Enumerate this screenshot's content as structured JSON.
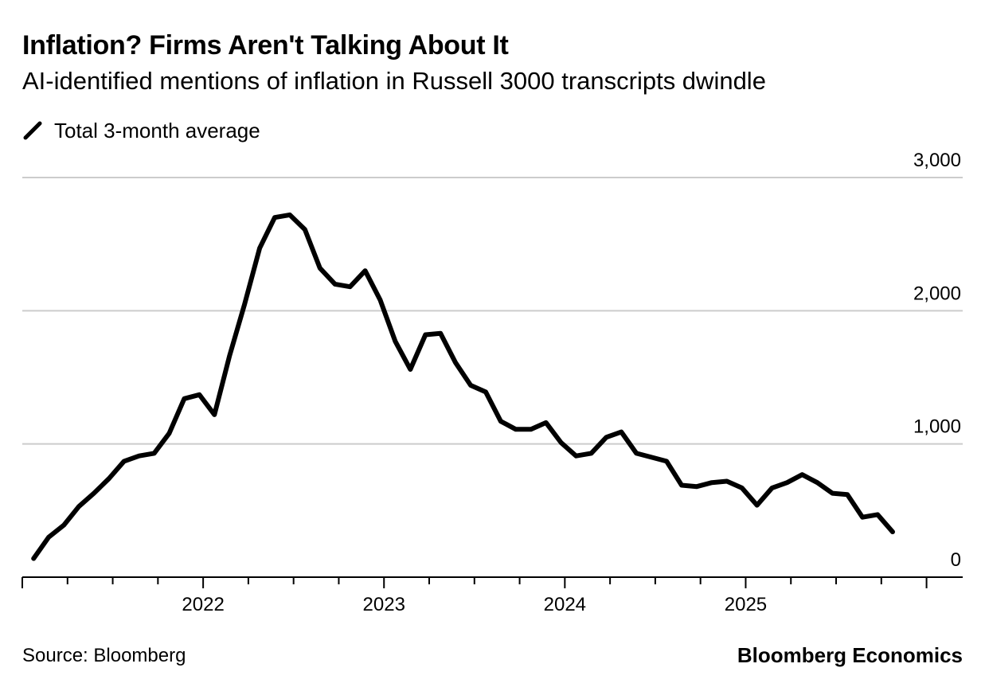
{
  "header": {
    "title": "Inflation? Firms Aren't Talking About It",
    "subtitle": "AI-identified mentions of inflation in Russell 3000 transcripts dwindle"
  },
  "legend": {
    "label": "Total 3-month average",
    "color": "#000000"
  },
  "footer": {
    "source": "Source: Bloomberg",
    "brand": "Bloomberg Economics"
  },
  "colors": {
    "line": "#000000",
    "grid": "#cccccc",
    "axis": "#000000",
    "background": "#ffffff"
  },
  "chart_data": {
    "type": "line",
    "title": "Inflation? Firms Aren't Talking About It",
    "subtitle": "AI-identified mentions of inflation in Russell 3000 transcripts dwindle",
    "xlabel": "",
    "ylabel": "",
    "xlim": [
      2021.0,
      2026.2
    ],
    "ylim": [
      0,
      3000
    ],
    "y_ticks": [
      0,
      1000,
      2000,
      3000
    ],
    "y_tick_labels": [
      "0",
      "1,000",
      "2,000",
      "3,000"
    ],
    "x_ticks": [
      2022,
      2023,
      2024,
      2025
    ],
    "x_tick_labels": [
      "2022",
      "2023",
      "2024",
      "2025"
    ],
    "y_axis_position": "right",
    "grid": true,
    "legend_position": "top-left",
    "series": [
      {
        "name": "Total 3-month average",
        "x": [
          2021.0625,
          2021.1458,
          2021.2292,
          2021.3125,
          2021.3958,
          2021.4792,
          2021.5625,
          2021.6458,
          2021.7292,
          2021.8125,
          2021.8958,
          2021.9792,
          2022.0625,
          2022.1458,
          2022.2292,
          2022.3125,
          2022.3958,
          2022.4792,
          2022.5625,
          2022.6458,
          2022.7292,
          2022.8125,
          2022.8958,
          2022.9792,
          2023.0625,
          2023.1458,
          2023.2292,
          2023.3125,
          2023.3958,
          2023.4792,
          2023.5625,
          2023.6458,
          2023.7292,
          2023.8125,
          2023.8958,
          2023.9792,
          2024.0625,
          2024.1458,
          2024.2292,
          2024.3125,
          2024.3958,
          2024.4792,
          2024.5625,
          2024.6458,
          2024.7292,
          2024.8125,
          2024.8958,
          2024.9792,
          2025.0625,
          2025.1458,
          2025.2292,
          2025.3125,
          2025.3958,
          2025.4792,
          2025.5625,
          2025.6458,
          2025.7292,
          2025.8125
        ],
        "values": [
          140,
          300,
          390,
          530,
          630,
          740,
          870,
          910,
          930,
          1080,
          1340,
          1370,
          1220,
          1660,
          2050,
          2470,
          2700,
          2720,
          2610,
          2320,
          2200,
          2180,
          2300,
          2080,
          1770,
          1560,
          1820,
          1830,
          1610,
          1440,
          1390,
          1170,
          1110,
          1110,
          1160,
          1010,
          910,
          930,
          1050,
          1090,
          930,
          900,
          870,
          690,
          680,
          710,
          720,
          670,
          540,
          670,
          710,
          770,
          710,
          630,
          620,
          450,
          470,
          340
        ]
      }
    ]
  }
}
